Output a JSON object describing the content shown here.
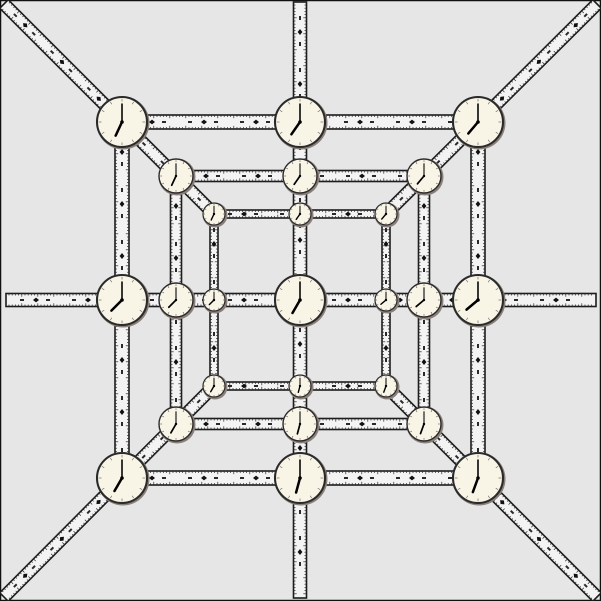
{
  "image": {
    "subject": "lattice-of-rulers-and-clocks",
    "colors": {
      "background": "#e6e6e6",
      "frame": "#111111",
      "ruler_fill": "#f3f3f3",
      "ruler_edge": "#1c1c1c",
      "ruler_ticks": "#2a2a2a",
      "clock_face": "#f8f4e6",
      "clock_rim": "#2a2a2a",
      "clock_shadow": "#8a7f7a",
      "clock_hands": "#000000"
    },
    "icons": [
      "clock-icon",
      "ruler-icon"
    ],
    "structure": {
      "layers": [
        "outer",
        "middle",
        "inner"
      ],
      "clocks_per_layer": 8,
      "clock_positions": [
        "top-left",
        "top",
        "top-right",
        "right",
        "bottom-right",
        "bottom",
        "bottom-left",
        "left"
      ],
      "center_clock": true,
      "radial_rulers": [
        "top-left",
        "top",
        "top-right",
        "right",
        "bottom-right",
        "bottom",
        "bottom-left",
        "left"
      ]
    }
  }
}
